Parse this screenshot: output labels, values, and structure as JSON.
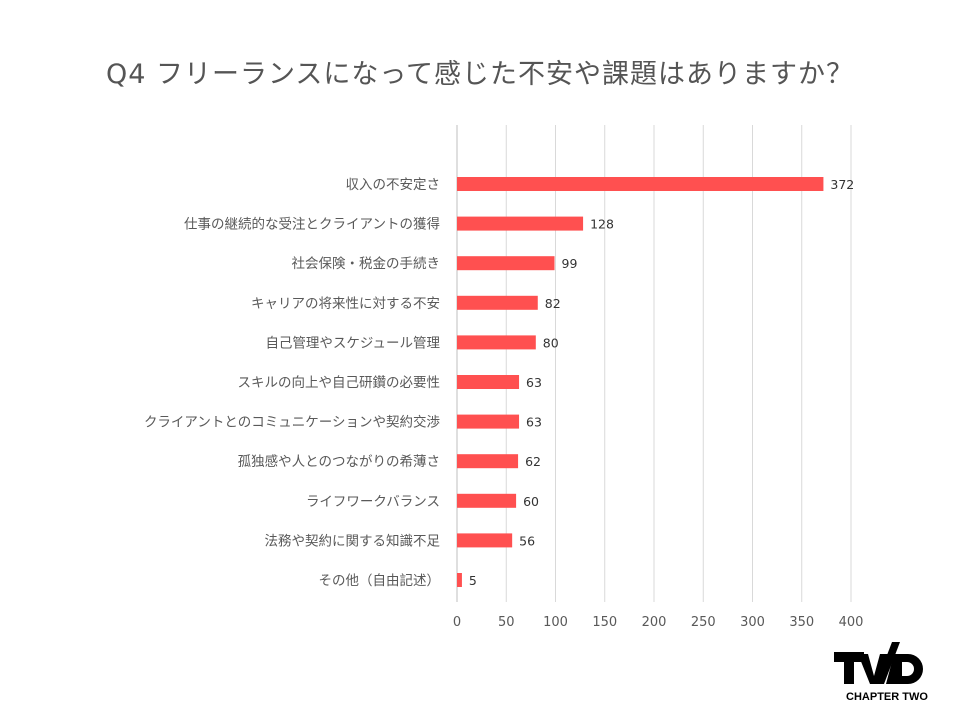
{
  "title": "Q4 フリーランスになって感じた不安や課題はありますか？",
  "logo": {
    "mark": "TWO",
    "text": "CHAPTER TWO"
  },
  "colors": {
    "bar": "#ff5050",
    "grid": "#d9d9d9",
    "text": "#595959"
  },
  "chart_data": {
    "type": "bar",
    "orientation": "horizontal",
    "title": "Q4 フリーランスになって感じた不安や課題はありますか？",
    "categories": [
      "収入の不安定さ",
      "仕事の継続的な受注とクライアントの獲得",
      "社会保険・税金の手続き",
      "キャリアの将来性に対する不安",
      "自己管理やスケジュール管理",
      "スキルの向上や自己研鑽の必要性",
      "クライアントとのコミュニケーションや契約交渉",
      "孤独感や人とのつながりの希薄さ",
      "ライフワークバランス",
      "法務や契約に関する知識不足",
      "その他（自由記述）"
    ],
    "values": [
      372,
      128,
      99,
      82,
      80,
      63,
      63,
      62,
      60,
      56,
      5
    ],
    "xlim": [
      0,
      400
    ],
    "xticks": [
      0,
      50,
      100,
      150,
      200,
      250,
      300,
      350,
      400
    ],
    "grid": true,
    "legend": "none",
    "xlabel": "",
    "ylabel": ""
  }
}
